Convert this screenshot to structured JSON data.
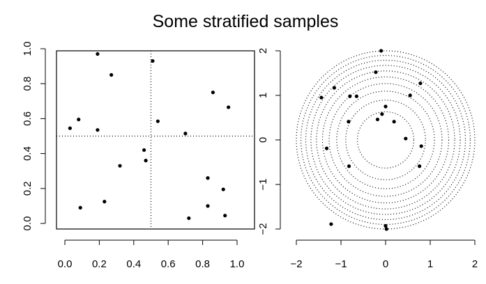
{
  "title": "Some stratified samples",
  "chart_data": [
    {
      "type": "scatter",
      "name": "unit-square-stratified",
      "xlim": [
        0,
        1
      ],
      "ylim": [
        0,
        1
      ],
      "x_ticks": [
        {
          "value": 0.0,
          "label": "0.0"
        },
        {
          "value": 0.2,
          "label": "0.2"
        },
        {
          "value": 0.4,
          "label": "0.4"
        },
        {
          "value": 0.6,
          "label": "0.6"
        },
        {
          "value": 0.8,
          "label": "0.8"
        },
        {
          "value": 1.0,
          "label": "1.0"
        }
      ],
      "y_ticks": [
        {
          "value": 0.0,
          "label": "0.0"
        },
        {
          "value": 0.2,
          "label": "0.2"
        },
        {
          "value": 0.4,
          "label": "0.4"
        },
        {
          "value": 0.6,
          "label": "0.6"
        },
        {
          "value": 0.8,
          "label": "0.8"
        },
        {
          "value": 1.0,
          "label": "1.0"
        }
      ],
      "dividers": {
        "x": 0.5,
        "y": 0.5
      },
      "points": [
        [
          0.19,
          0.97
        ],
        [
          0.51,
          0.93
        ],
        [
          0.27,
          0.85
        ],
        [
          0.86,
          0.75
        ],
        [
          0.95,
          0.665
        ],
        [
          0.08,
          0.595
        ],
        [
          0.54,
          0.585
        ],
        [
          0.03,
          0.545
        ],
        [
          0.19,
          0.535
        ],
        [
          0.7,
          0.515
        ],
        [
          0.46,
          0.42
        ],
        [
          0.47,
          0.36
        ],
        [
          0.32,
          0.33
        ],
        [
          0.83,
          0.26
        ],
        [
          0.92,
          0.195
        ],
        [
          0.23,
          0.125
        ],
        [
          0.83,
          0.1
        ],
        [
          0.09,
          0.09
        ],
        [
          0.93,
          0.045
        ],
        [
          0.72,
          0.03
        ]
      ]
    },
    {
      "type": "scatter",
      "name": "concentric-rings-stratified",
      "xlim": [
        -2,
        2
      ],
      "ylim": [
        -2,
        2
      ],
      "x_ticks": [
        {
          "value": -2,
          "label": "−2"
        },
        {
          "value": -1,
          "label": "−1"
        },
        {
          "value": 0,
          "label": "0"
        },
        {
          "value": 1,
          "label": "1"
        },
        {
          "value": 2,
          "label": "2"
        }
      ],
      "y_ticks": [
        {
          "value": -2,
          "label": "−2"
        },
        {
          "value": -1,
          "label": "−1"
        },
        {
          "value": 0,
          "label": "0"
        },
        {
          "value": 1,
          "label": "1"
        },
        {
          "value": 2,
          "label": "2"
        }
      ],
      "ring_radii": [
        0.632,
        0.894,
        1.095,
        1.265,
        1.414,
        1.549,
        1.673,
        1.789,
        1.897,
        2.0
      ],
      "points": [
        [
          -0.1,
          2.0
        ],
        [
          -0.22,
          1.52
        ],
        [
          0.78,
          1.27
        ],
        [
          -1.15,
          1.17
        ],
        [
          0.55,
          1.0
        ],
        [
          -1.44,
          0.95
        ],
        [
          -0.8,
          0.98
        ],
        [
          -0.65,
          0.98
        ],
        [
          0.0,
          0.75
        ],
        [
          -0.08,
          0.58
        ],
        [
          -0.18,
          0.46
        ],
        [
          -0.83,
          0.41
        ],
        [
          0.19,
          0.41
        ],
        [
          0.45,
          0.03
        ],
        [
          0.8,
          -0.14
        ],
        [
          -1.32,
          -0.19
        ],
        [
          -0.82,
          -0.59
        ],
        [
          0.76,
          -0.59
        ],
        [
          -1.22,
          -1.89
        ],
        [
          0.0,
          -1.93
        ],
        [
          0.02,
          -2.0
        ]
      ]
    }
  ]
}
